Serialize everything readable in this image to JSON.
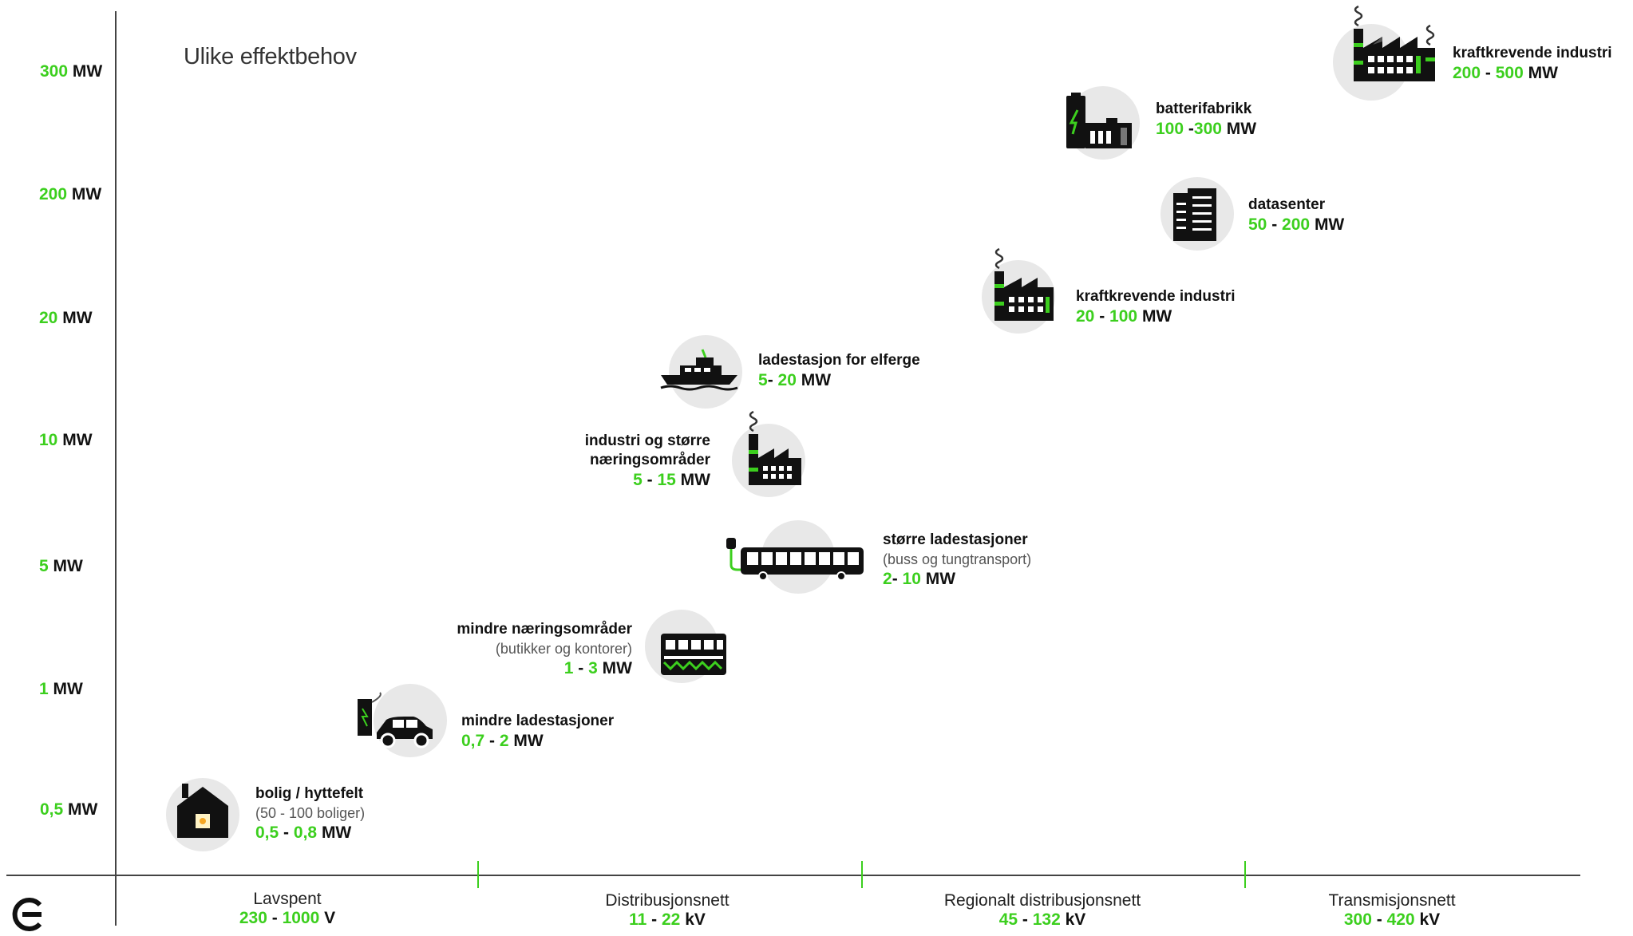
{
  "title": "Ulike effektbehov",
  "y_labels": [
    {
      "num": "300",
      "unit": "MW"
    },
    {
      "num": "200",
      "unit": "MW"
    },
    {
      "num": "20",
      "unit": "MW"
    },
    {
      "num": "10",
      "unit": "MW"
    },
    {
      "num": "5",
      "unit": "MW"
    },
    {
      "num": "1",
      "unit": "MW"
    },
    {
      "num": "0,5",
      "unit": "MW"
    }
  ],
  "x_segments": [
    {
      "name": "Lavspent",
      "from": "230",
      "sep": "-",
      "to": "1000",
      "unit": "V"
    },
    {
      "name": "Distribusjonsnett",
      "from": "11",
      "sep": "-",
      "to": "22",
      "unit": "kV"
    },
    {
      "name": "Regionalt distribusjonsnett",
      "from": "45",
      "sep": "-",
      "to": "132",
      "unit": "kV"
    },
    {
      "name": "Transmisjonsnett",
      "from": "300",
      "sep": "-",
      "to": "420",
      "unit": "kV"
    }
  ],
  "items": {
    "bolig": {
      "name": "bolig / hyttefelt",
      "sub": "(50 - 100 boliger)",
      "from": "0,5",
      "sep": "-",
      "to": "0,8",
      "unit": "MW"
    },
    "mindre_ladestasjoner": {
      "name": "mindre ladestasjoner",
      "from": "0,7",
      "sep": "-",
      "to": "2",
      "unit": "MW"
    },
    "mindre_naering": {
      "name": "mindre næringsområder",
      "sub": "(butikker og kontorer)",
      "from": "1",
      "sep": "-",
      "to": "3",
      "unit": "MW"
    },
    "storre_ladestasjoner": {
      "name": "større ladestasjoner",
      "sub": "(buss og tungtransport)",
      "from": "2",
      "sep": "-",
      "to": "10",
      "unit": "MW"
    },
    "industri_storre": {
      "name1": "industri og større",
      "name2": "næringsområder",
      "from": "5",
      "sep": "-",
      "to": "15",
      "unit": "MW"
    },
    "elferge": {
      "name": "ladestasjon for elferge",
      "from": "5",
      "sep": "-",
      "to": "20",
      "unit": "MW"
    },
    "kraft_mid": {
      "name": "kraftkrevende industri",
      "from": "20",
      "sep": "-",
      "to": "100",
      "unit": "MW"
    },
    "datasenter": {
      "name": "datasenter",
      "from": "50",
      "sep": "-",
      "to": "200",
      "unit": "MW"
    },
    "batterifabrikk": {
      "name": "batterifabrikk",
      "from": "100",
      "sep": "-",
      "to": "300",
      "unit": "MW"
    },
    "kraft_top": {
      "name": "kraftkrevende industri",
      "from": "200",
      "sep": "-",
      "to": "500",
      "unit": "MW"
    }
  },
  "colors": {
    "accent": "#3ccf1e",
    "text": "#111111",
    "circle": "#e8e8e8"
  },
  "icons": [
    "house-icon",
    "ev-charger-car-icon",
    "shop-icon",
    "bus-charger-icon",
    "factory-icon",
    "ferry-icon",
    "factory-icon",
    "datacenter-icon",
    "battery-factory-icon",
    "factory-large-icon",
    "brand-logo-icon"
  ]
}
